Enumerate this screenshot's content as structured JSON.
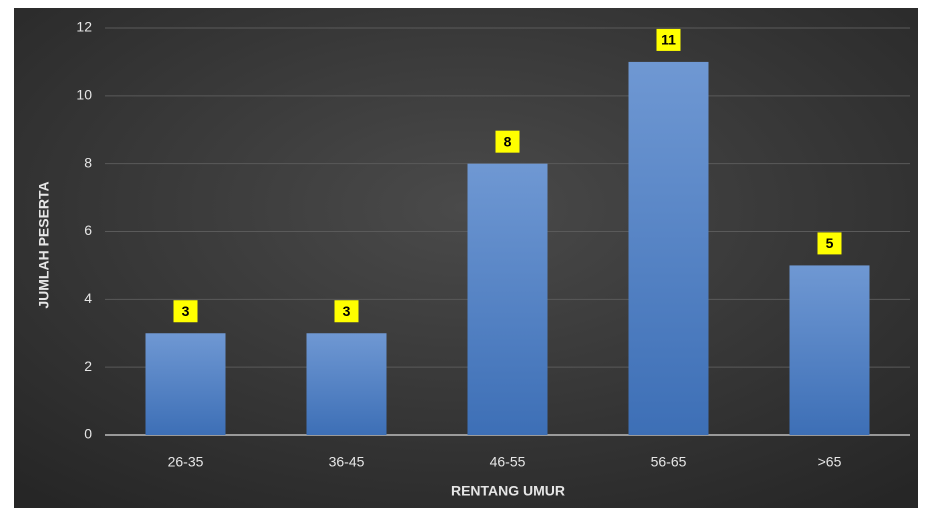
{
  "chart_data": {
    "type": "bar",
    "x_label": "RENTANG UMUR",
    "y_label": "JUMLAH PESERTA",
    "categories": [
      "26-35",
      "36-45",
      "46-55",
      "56-65",
      ">65"
    ],
    "values": [
      3,
      3,
      8,
      11,
      5
    ],
    "color": "#4f7fc2",
    "label_color": "#ffff00",
    "ylim": [
      0,
      12
    ],
    "yticks": [
      0,
      2,
      4,
      6,
      8,
      10,
      12
    ],
    "grid": true
  }
}
